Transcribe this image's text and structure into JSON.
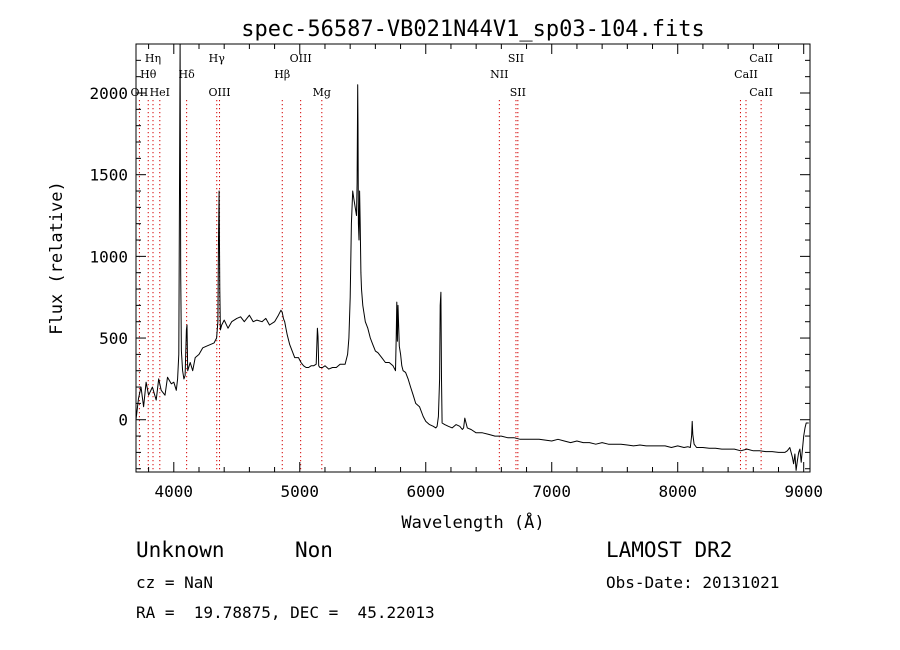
{
  "chart_data": {
    "type": "line",
    "title": "spec-56587-VB021N44V1_sp03-104.fits",
    "xlabel": "Wavelength (Å)",
    "ylabel": "Flux (relative)",
    "xlim": [
      3700,
      9050
    ],
    "ylim": [
      -320,
      2300
    ],
    "xticks": [
      4000,
      5000,
      6000,
      7000,
      8000,
      9000
    ],
    "yticks": [
      0,
      500,
      1000,
      1500,
      2000
    ],
    "grid": false,
    "series": [
      {
        "x": [
          3700,
          3720,
          3740,
          3760,
          3780,
          3800,
          3830,
          3860,
          3880,
          3900,
          3930,
          3950,
          3980,
          4000,
          4020,
          4030,
          4040,
          4045,
          4050,
          4055,
          4060,
          4070,
          4080,
          4090,
          4100,
          4105,
          4110,
          4130,
          4150,
          4170,
          4200,
          4230,
          4260,
          4290,
          4320,
          4340,
          4350,
          4355,
          4360,
          4365,
          4370,
          4380,
          4400,
          4430,
          4460,
          4500,
          4530,
          4560,
          4600,
          4630,
          4660,
          4700,
          4730,
          4760,
          4800,
          4830,
          4850,
          4860,
          4865,
          4870,
          4875,
          4880,
          4885,
          4890,
          4900,
          4920,
          4940,
          4960,
          4990,
          5010,
          5030,
          5050,
          5070,
          5090,
          5110,
          5130,
          5140,
          5145,
          5150,
          5160,
          5180,
          5200,
          5230,
          5260,
          5290,
          5320,
          5340,
          5360,
          5380,
          5390,
          5400,
          5410,
          5420,
          5430,
          5440,
          5450,
          5455,
          5460,
          5462,
          5465,
          5470,
          5475,
          5480,
          5485,
          5490,
          5500,
          5520,
          5540,
          5560,
          5580,
          5600,
          5620,
          5650,
          5680,
          5710,
          5740,
          5760,
          5765,
          5770,
          5775,
          5780,
          5790,
          5800,
          5810,
          5820,
          5840,
          5860,
          5880,
          5900,
          5920,
          5950,
          5980,
          6000,
          6030,
          6060,
          6080,
          6090,
          6100,
          6110,
          6115,
          6120,
          6125,
          6130,
          6150,
          6180,
          6210,
          6240,
          6270,
          6290,
          6300,
          6310,
          6330,
          6360,
          6400,
          6450,
          6500,
          6550,
          6600,
          6650,
          6700,
          6750,
          6800,
          6850,
          6900,
          6950,
          7000,
          7050,
          7100,
          7150,
          7200,
          7250,
          7300,
          7350,
          7400,
          7450,
          7500,
          7550,
          7600,
          7650,
          7700,
          7750,
          7800,
          7850,
          7900,
          7950,
          8000,
          8050,
          8080,
          8100,
          8110,
          8115,
          8120,
          8130,
          8150,
          8200,
          8250,
          8300,
          8350,
          8400,
          8450,
          8500,
          8550,
          8600,
          8650,
          8700,
          8750,
          8800,
          8850,
          8870,
          8890,
          8900,
          8910,
          8920,
          8930,
          8940,
          8950,
          8960,
          8970,
          8980,
          9000,
          9010,
          9020,
          9040
        ],
        "y": [
          0,
          130,
          200,
          80,
          230,
          150,
          200,
          120,
          250,
          180,
          150,
          260,
          220,
          230,
          180,
          250,
          400,
          1400,
          2300,
          900,
          420,
          300,
          250,
          270,
          550,
          580,
          300,
          350,
          300,
          380,
          400,
          440,
          450,
          460,
          470,
          500,
          600,
          1100,
          1400,
          800,
          550,
          580,
          610,
          560,
          600,
          620,
          630,
          600,
          640,
          600,
          610,
          600,
          620,
          580,
          600,
          640,
          670,
          660,
          640,
          620,
          610,
          600,
          580,
          560,
          520,
          460,
          420,
          380,
          380,
          350,
          330,
          320,
          320,
          330,
          330,
          340,
          560,
          510,
          330,
          320,
          320,
          330,
          310,
          320,
          320,
          340,
          340,
          340,
          400,
          500,
          750,
          1200,
          1400,
          1350,
          1300,
          1250,
          1450,
          2050,
          1800,
          1200,
          1100,
          1400,
          1200,
          900,
          800,
          700,
          600,
          560,
          500,
          460,
          420,
          410,
          380,
          350,
          350,
          330,
          300,
          500,
          720,
          480,
          700,
          450,
          400,
          330,
          300,
          290,
          250,
          200,
          150,
          100,
          80,
          20,
          -10,
          -30,
          -40,
          -50,
          -40,
          20,
          250,
          700,
          780,
          250,
          -20,
          -30,
          -40,
          -50,
          -30,
          -40,
          -60,
          -50,
          10,
          -50,
          -60,
          -80,
          -80,
          -90,
          -100,
          -100,
          -110,
          -110,
          -120,
          -120,
          -120,
          -120,
          -125,
          -130,
          -120,
          -130,
          -140,
          -130,
          -140,
          -140,
          -150,
          -140,
          -150,
          -150,
          -150,
          -155,
          -160,
          -155,
          -160,
          -160,
          -160,
          -160,
          -170,
          -160,
          -170,
          -165,
          -170,
          -100,
          -10,
          -90,
          -150,
          -170,
          -170,
          -175,
          -175,
          -180,
          -180,
          -180,
          -190,
          -180,
          -190,
          -190,
          -195,
          -195,
          -200,
          -200,
          -190,
          -170,
          -200,
          -230,
          -270,
          -210,
          -310,
          -250,
          -200,
          -180,
          -260,
          -100,
          -50,
          -20,
          -20
        ]
      }
    ],
    "line_markers": [
      {
        "label": "Hη",
        "x": 3835,
        "row": 0
      },
      {
        "label": "Hθ",
        "x": 3797,
        "row": 1
      },
      {
        "label": "OII",
        "x": 3727,
        "row": 2
      },
      {
        "label": "HeI",
        "x": 3889,
        "row": 2
      },
      {
        "label": "Hδ",
        "x": 4102,
        "row": 1
      },
      {
        "label": "Hγ",
        "x": 4341,
        "row": 0
      },
      {
        "label": "OIII",
        "x": 4363,
        "row": 2
      },
      {
        "label": "Hβ",
        "x": 4861,
        "row": 1
      },
      {
        "label": "OIII",
        "x": 5007,
        "row": 0
      },
      {
        "label": "Mg",
        "x": 5175,
        "row": 2
      },
      {
        "label": "SII",
        "x": 6716,
        "row": 0
      },
      {
        "label": "NII",
        "x": 6584,
        "row": 1
      },
      {
        "label": "SII",
        "x": 6731,
        "row": 2
      },
      {
        "label": "CaII",
        "x": 8662,
        "row": 0
      },
      {
        "label": "CaII",
        "x": 8542,
        "row": 1
      },
      {
        "label": "CaII",
        "x": 8662,
        "row": 2
      }
    ],
    "marker_lines_x": [
      3727,
      3797,
      3835,
      3889,
      4102,
      4341,
      4363,
      4861,
      5007,
      5175,
      6584,
      6716,
      6731,
      8498,
      8542,
      8662
    ],
    "colors": {
      "spectrum": "#000000",
      "line_markers": "#d40000",
      "axes": "#000000",
      "background": "#ffffff"
    }
  },
  "info": {
    "object_type": "Unknown",
    "object_class": "Non",
    "redshift": "cz = NaN",
    "coords": "RA =  19.78875, DEC =  45.22013",
    "survey": "LAMOST DR2",
    "obs_date": "Obs-Date: 20131021"
  }
}
